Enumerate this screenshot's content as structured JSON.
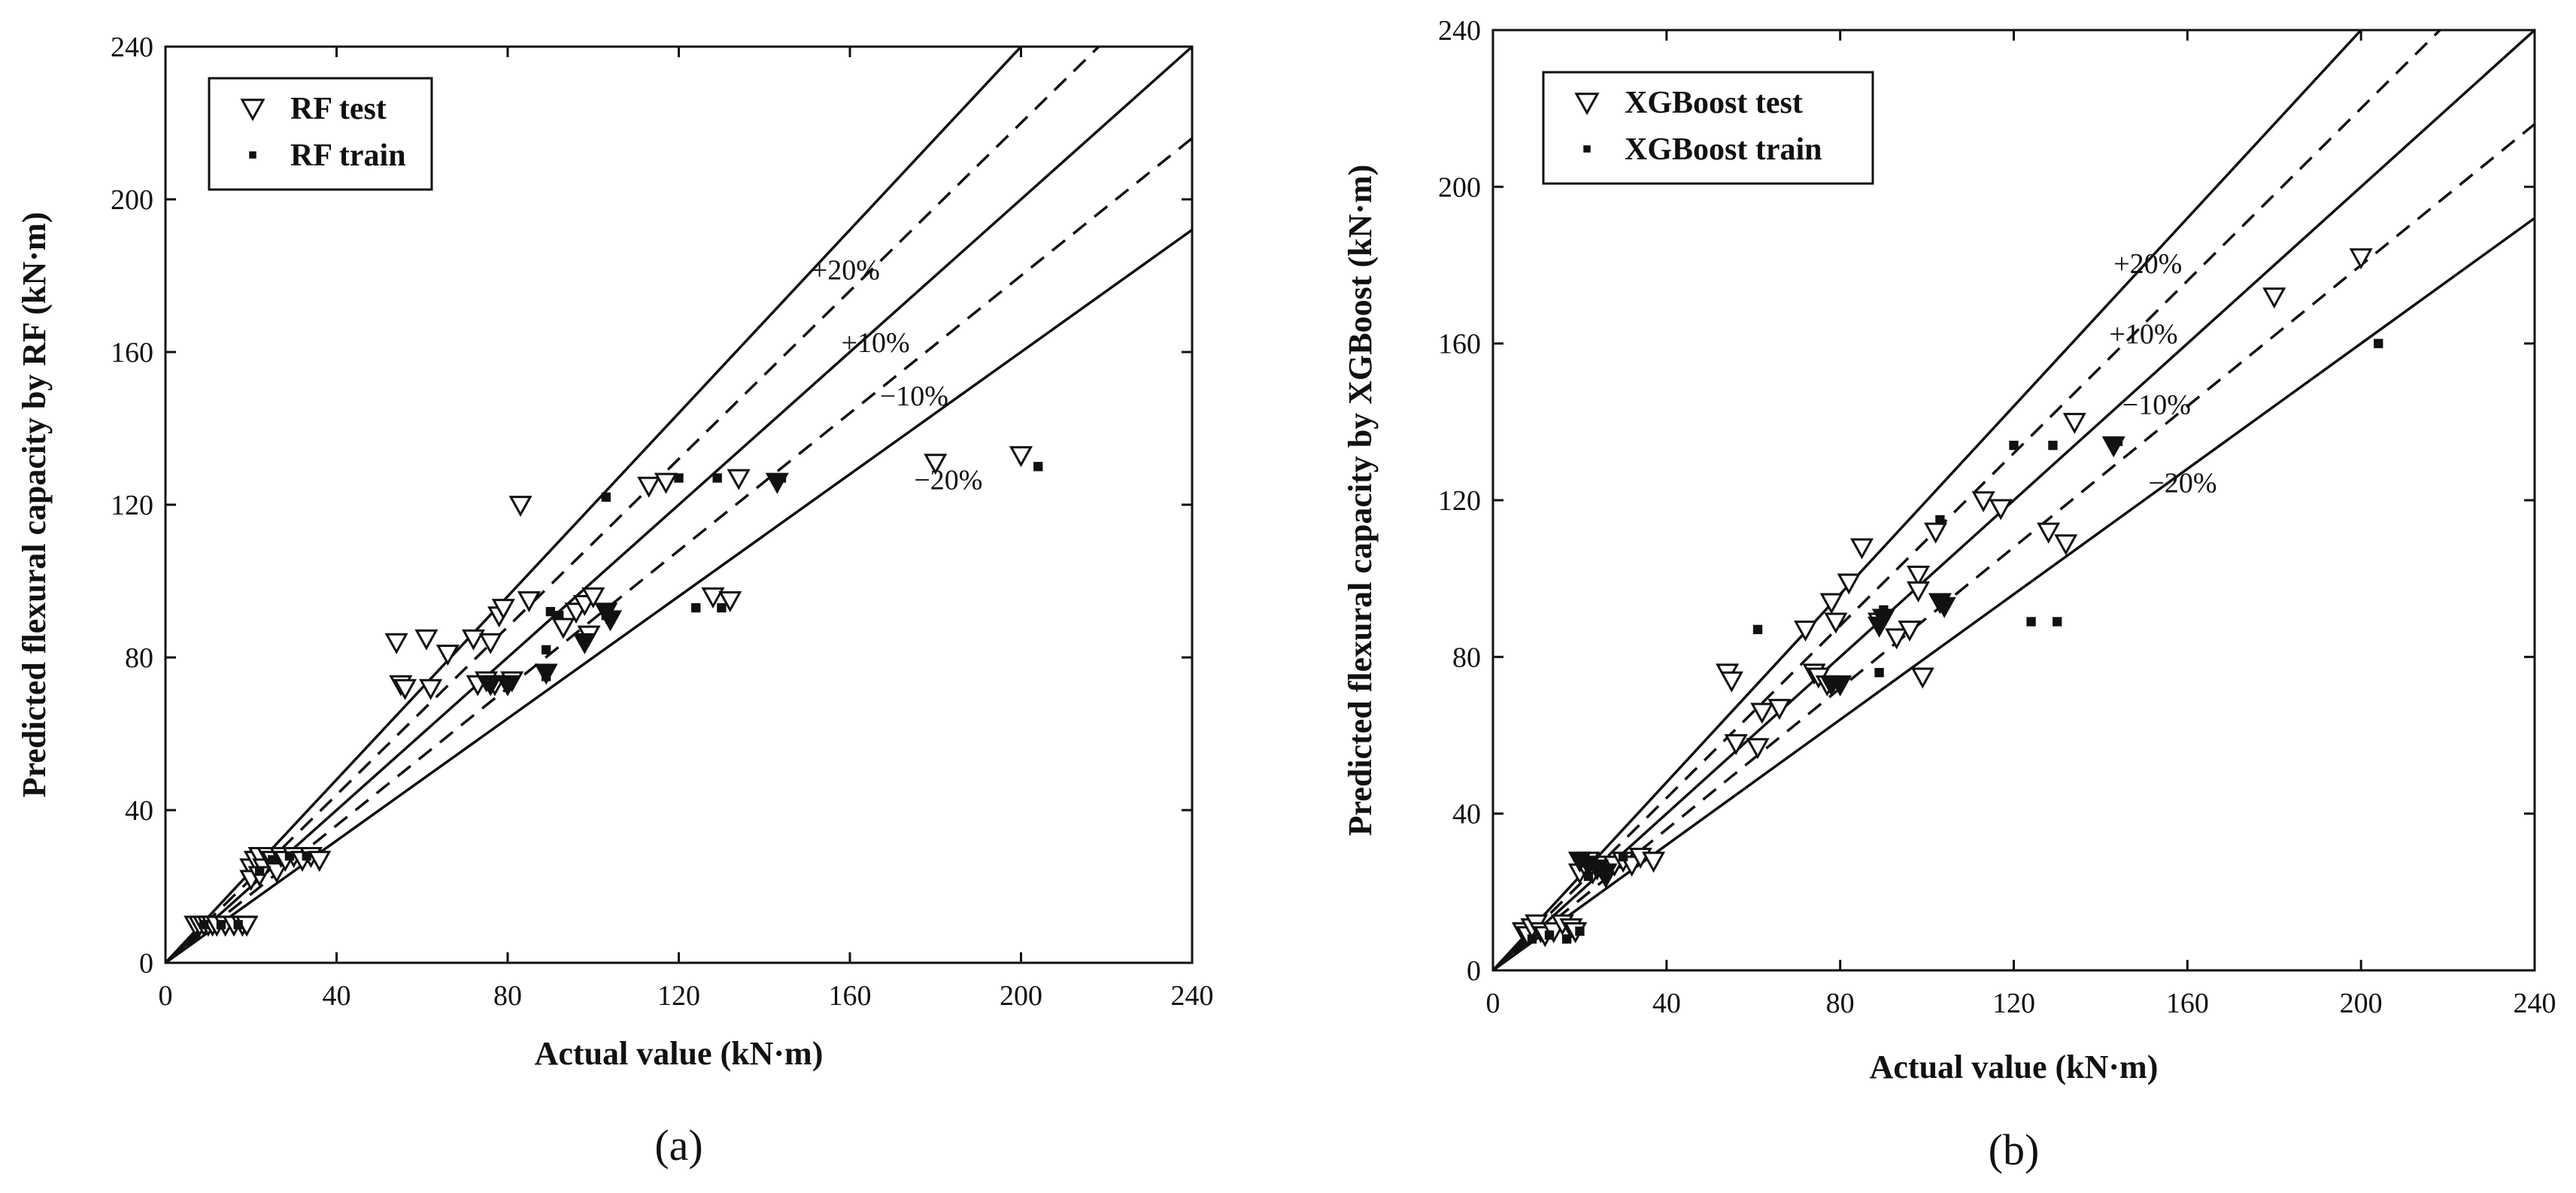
{
  "chart_data": [
    {
      "type": "scatter",
      "panel_label": "(a)",
      "xlabel": "Actual value (kN·m)",
      "ylabel": "Predicted flexural capacity by RF (kN·m)",
      "xlim": [
        0,
        240
      ],
      "ylim": [
        0,
        240
      ],
      "xticks": [
        "0",
        "40",
        "80",
        "120",
        "160",
        "200",
        "240"
      ],
      "yticks": [
        "0",
        "40",
        "80",
        "120",
        "160",
        "200",
        "240"
      ],
      "legend_position": "top-left",
      "reference_lines": [
        {
          "label": "+20%",
          "slope": 1.2,
          "style": "solid"
        },
        {
          "label": "+10%",
          "slope": 1.1,
          "style": "dashed"
        },
        {
          "label": "",
          "slope": 1.0,
          "style": "solid"
        },
        {
          "label": "−10%",
          "slope": 0.9,
          "style": "dashed"
        },
        {
          "label": "−20%",
          "slope": 0.8,
          "style": "solid"
        }
      ],
      "band_label_positions": [
        [
          151,
          179
        ],
        [
          158,
          160
        ],
        [
          167,
          146
        ],
        [
          175,
          124
        ]
      ],
      "series": [
        {
          "name": "RF test",
          "marker": "triangle-down-open",
          "points": [
            [
              7,
              10
            ],
            [
              8,
              10
            ],
            [
              9,
              10
            ],
            [
              10,
              10
            ],
            [
              11,
              10
            ],
            [
              12,
              10
            ],
            [
              14,
              10
            ],
            [
              16,
              10
            ],
            [
              18,
              10
            ],
            [
              19,
              10
            ],
            [
              20,
              25
            ],
            [
              21,
              27
            ],
            [
              22,
              28
            ],
            [
              23,
              25
            ],
            [
              24,
              28
            ],
            [
              25,
              27
            ],
            [
              26,
              24
            ],
            [
              27,
              28
            ],
            [
              28,
              27
            ],
            [
              30,
              28
            ],
            [
              32,
              27
            ],
            [
              34,
              28
            ],
            [
              36,
              27
            ],
            [
              20,
              22
            ],
            [
              22,
              23
            ],
            [
              54,
              84
            ],
            [
              55,
              73
            ],
            [
              56,
              72
            ],
            [
              61,
              85
            ],
            [
              62,
              72
            ],
            [
              66,
              81
            ],
            [
              72,
              85
            ],
            [
              73,
              73
            ],
            [
              75,
              74
            ],
            [
              76,
              84
            ],
            [
              77,
              73
            ],
            [
              78,
              91
            ],
            [
              79,
              93
            ],
            [
              80,
              73
            ],
            [
              81,
              74
            ],
            [
              83,
              120
            ],
            [
              85,
              95
            ],
            [
              93,
              88
            ],
            [
              96,
              92
            ],
            [
              98,
              94
            ],
            [
              100,
              96
            ],
            [
              99,
              86
            ],
            [
              113,
              125
            ],
            [
              117,
              126
            ],
            [
              128,
              96
            ],
            [
              132,
              95
            ],
            [
              134,
              127
            ],
            [
              180,
              131
            ],
            [
              200,
              133
            ]
          ]
        },
        {
          "name": "RF train",
          "marker": "square-filled",
          "points": [
            [
              9,
              10
            ],
            [
              13,
              10
            ],
            [
              17,
              10
            ],
            [
              22,
              24
            ],
            [
              25,
              27
            ],
            [
              29,
              28
            ],
            [
              33,
              28
            ],
            [
              89,
              82
            ],
            [
              90,
              92
            ],
            [
              92,
              91
            ],
            [
              103,
              122
            ],
            [
              120,
              127
            ],
            [
              124,
              93
            ],
            [
              129,
              127
            ],
            [
              130,
              93
            ],
            [
              144,
              127
            ],
            [
              204,
              130
            ],
            [
              89,
              75
            ],
            [
              98,
              85
            ],
            [
              103,
              91
            ],
            [
              104,
              90
            ]
          ]
        },
        {
          "name": "",
          "marker": "triangle-down-filled",
          "points": [
            [
              89,
              76
            ],
            [
              98,
              84
            ],
            [
              103,
              92
            ],
            [
              104,
              90
            ],
            [
              143,
              126
            ],
            [
              76,
              73
            ],
            [
              80,
              73
            ]
          ]
        }
      ]
    },
    {
      "type": "scatter",
      "panel_label": "(b)",
      "xlabel": "Actual value (kN·m)",
      "ylabel": "Predicted flexural capacity by XGBoost (kN·m)",
      "xlim": [
        0,
        240
      ],
      "ylim": [
        0,
        240
      ],
      "xticks": [
        "0",
        "40",
        "80",
        "120",
        "160",
        "200",
        "240"
      ],
      "yticks": [
        "0",
        "40",
        "80",
        "120",
        "160",
        "200",
        "240"
      ],
      "legend_position": "top-left",
      "reference_lines": [
        {
          "label": "+20%",
          "slope": 1.2,
          "style": "solid"
        },
        {
          "label": "+10%",
          "slope": 1.1,
          "style": "dashed"
        },
        {
          "label": "",
          "slope": 1.0,
          "style": "solid"
        },
        {
          "label": "−10%",
          "slope": 0.9,
          "style": "dashed"
        },
        {
          "label": "−20%",
          "slope": 0.8,
          "style": "solid"
        }
      ],
      "band_label_positions": [
        [
          143,
          178
        ],
        [
          142,
          160
        ],
        [
          145,
          142
        ],
        [
          151,
          122
        ]
      ],
      "series": [
        {
          "name": "XGBoost test",
          "marker": "triangle-down-open",
          "points": [
            [
              7,
              10
            ],
            [
              8,
              9
            ],
            [
              9,
              11
            ],
            [
              10,
              12
            ],
            [
              11,
              10
            ],
            [
              12,
              9
            ],
            [
              14,
              10
            ],
            [
              16,
              12
            ],
            [
              18,
              11
            ],
            [
              19,
              10
            ],
            [
              20,
              25
            ],
            [
              21,
              27
            ],
            [
              22,
              28
            ],
            [
              23,
              25
            ],
            [
              24,
              27
            ],
            [
              26,
              24
            ],
            [
              28,
              27
            ],
            [
              30,
              28
            ],
            [
              32,
              27
            ],
            [
              34,
              29
            ],
            [
              37,
              28
            ],
            [
              54,
              76
            ],
            [
              55,
              74
            ],
            [
              56,
              58
            ],
            [
              61,
              57
            ],
            [
              62,
              66
            ],
            [
              66,
              67
            ],
            [
              72,
              87
            ],
            [
              74,
              76
            ],
            [
              75,
              75
            ],
            [
              77,
              73
            ],
            [
              78,
              94
            ],
            [
              79,
              89
            ],
            [
              82,
              99
            ],
            [
              85,
              108
            ],
            [
              89,
              89
            ],
            [
              93,
              85
            ],
            [
              96,
              87
            ],
            [
              98,
              101
            ],
            [
              98,
              97
            ],
            [
              99,
              75
            ],
            [
              102,
              112
            ],
            [
              113,
              120
            ],
            [
              117,
              118
            ],
            [
              128,
              112
            ],
            [
              132,
              109
            ],
            [
              134,
              140
            ],
            [
              180,
              172
            ],
            [
              200,
              182
            ]
          ]
        },
        {
          "name": "XGBoost train",
          "marker": "square-filled",
          "points": [
            [
              9,
              8
            ],
            [
              13,
              9
            ],
            [
              17,
              8
            ],
            [
              20,
              10
            ],
            [
              22,
              24
            ],
            [
              25,
              26
            ],
            [
              30,
              29
            ],
            [
              61,
              87
            ],
            [
              89,
              76
            ],
            [
              90,
              92
            ],
            [
              103,
              115
            ],
            [
              120,
              134
            ],
            [
              124,
              89
            ],
            [
              129,
              134
            ],
            [
              130,
              89
            ],
            [
              144,
              135
            ],
            [
              204,
              160
            ]
          ]
        },
        {
          "name": "",
          "marker": "triangle-down-filled",
          "points": [
            [
              20,
              28
            ],
            [
              22,
              27
            ],
            [
              24,
              26
            ],
            [
              26,
              25
            ],
            [
              89,
              88
            ],
            [
              90,
              90
            ],
            [
              103,
              94
            ],
            [
              104,
              93
            ],
            [
              143,
              134
            ],
            [
              78,
              73
            ],
            [
              80,
              73
            ]
          ]
        }
      ]
    }
  ]
}
